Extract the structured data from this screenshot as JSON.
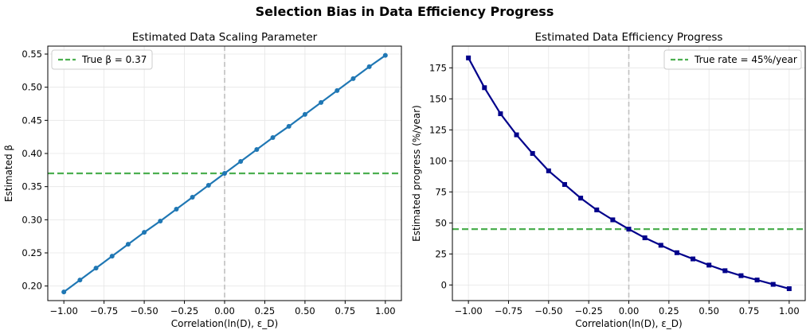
{
  "suptitle": "Selection Bias in Data Efficiency Progress",
  "chart_data": [
    {
      "type": "line",
      "title": "Estimated Data Scaling Parameter",
      "xlabel": "Correlation(ln(D), ε_D)",
      "ylabel": "Estimated β",
      "xlim": [
        -1.1,
        1.1
      ],
      "ylim": [
        0.178,
        0.562
      ],
      "xticks": [
        -1.0,
        -0.75,
        -0.5,
        -0.25,
        0.0,
        0.25,
        0.5,
        0.75,
        1.0
      ],
      "xtick_labels": [
        "−1.00",
        "−0.75",
        "−0.50",
        "−0.25",
        "0.00",
        "0.25",
        "0.50",
        "0.75",
        "1.00"
      ],
      "yticks": [
        0.2,
        0.25,
        0.3,
        0.35,
        0.4,
        0.45,
        0.5,
        0.55
      ],
      "ytick_labels": [
        "0.20",
        "0.25",
        "0.30",
        "0.35",
        "0.40",
        "0.45",
        "0.50",
        "0.55"
      ],
      "grid": true,
      "legend_position": "top-left",
      "reference_line": {
        "label": "True β = 0.37",
        "y": 0.37,
        "color": "#4caf50"
      },
      "vertical_line": {
        "x": 0.0,
        "color": "#c0c0c0"
      },
      "series": [
        {
          "color": "#1f77b4",
          "marker": "circle",
          "x": [
            -1.0,
            -0.9,
            -0.8,
            -0.7,
            -0.6,
            -0.5,
            -0.4,
            -0.3,
            -0.2,
            -0.1,
            0.0,
            0.1,
            0.2,
            0.3,
            0.4,
            0.5,
            0.6,
            0.7,
            0.8,
            0.9,
            1.0
          ],
          "y": [
            0.191,
            0.209,
            0.227,
            0.245,
            0.263,
            0.281,
            0.298,
            0.316,
            0.334,
            0.352,
            0.37,
            0.388,
            0.406,
            0.424,
            0.441,
            0.459,
            0.477,
            0.495,
            0.513,
            0.531,
            0.548
          ]
        }
      ]
    },
    {
      "type": "line",
      "title": "Estimated Data Efficiency Progress",
      "xlabel": "Correlation(ln(D), ε_D)",
      "ylabel": "Estimated progress (%/year)",
      "xlim": [
        -1.1,
        1.1
      ],
      "ylim": [
        -12.6,
        192.5
      ],
      "xticks": [
        -1.0,
        -0.75,
        -0.5,
        -0.25,
        0.0,
        0.25,
        0.5,
        0.75,
        1.0
      ],
      "xtick_labels": [
        "−1.00",
        "−0.75",
        "−0.50",
        "−0.25",
        "0.00",
        "0.25",
        "0.50",
        "0.75",
        "1.00"
      ],
      "yticks": [
        0,
        25,
        50,
        75,
        100,
        125,
        150,
        175
      ],
      "ytick_labels": [
        "0",
        "25",
        "50",
        "75",
        "100",
        "125",
        "150",
        "175"
      ],
      "grid": true,
      "legend_position": "top-right",
      "reference_line": {
        "label": "True rate = 45%/year",
        "y": 45,
        "color": "#4caf50"
      },
      "vertical_line": {
        "x": 0.0,
        "color": "#c0c0c0"
      },
      "series": [
        {
          "color": "#00008b",
          "marker": "square",
          "x": [
            -1.0,
            -0.9,
            -0.8,
            -0.7,
            -0.6,
            -0.5,
            -0.4,
            -0.3,
            -0.2,
            -0.1,
            0.0,
            0.1,
            0.2,
            0.3,
            0.4,
            0.5,
            0.6,
            0.7,
            0.8,
            0.9,
            1.0
          ],
          "y": [
            183,
            159,
            138,
            121,
            106,
            92,
            81,
            70,
            60.5,
            52.5,
            45,
            38,
            32,
            26,
            21,
            16,
            11.5,
            7.5,
            4,
            0.5,
            -3
          ]
        }
      ]
    }
  ]
}
